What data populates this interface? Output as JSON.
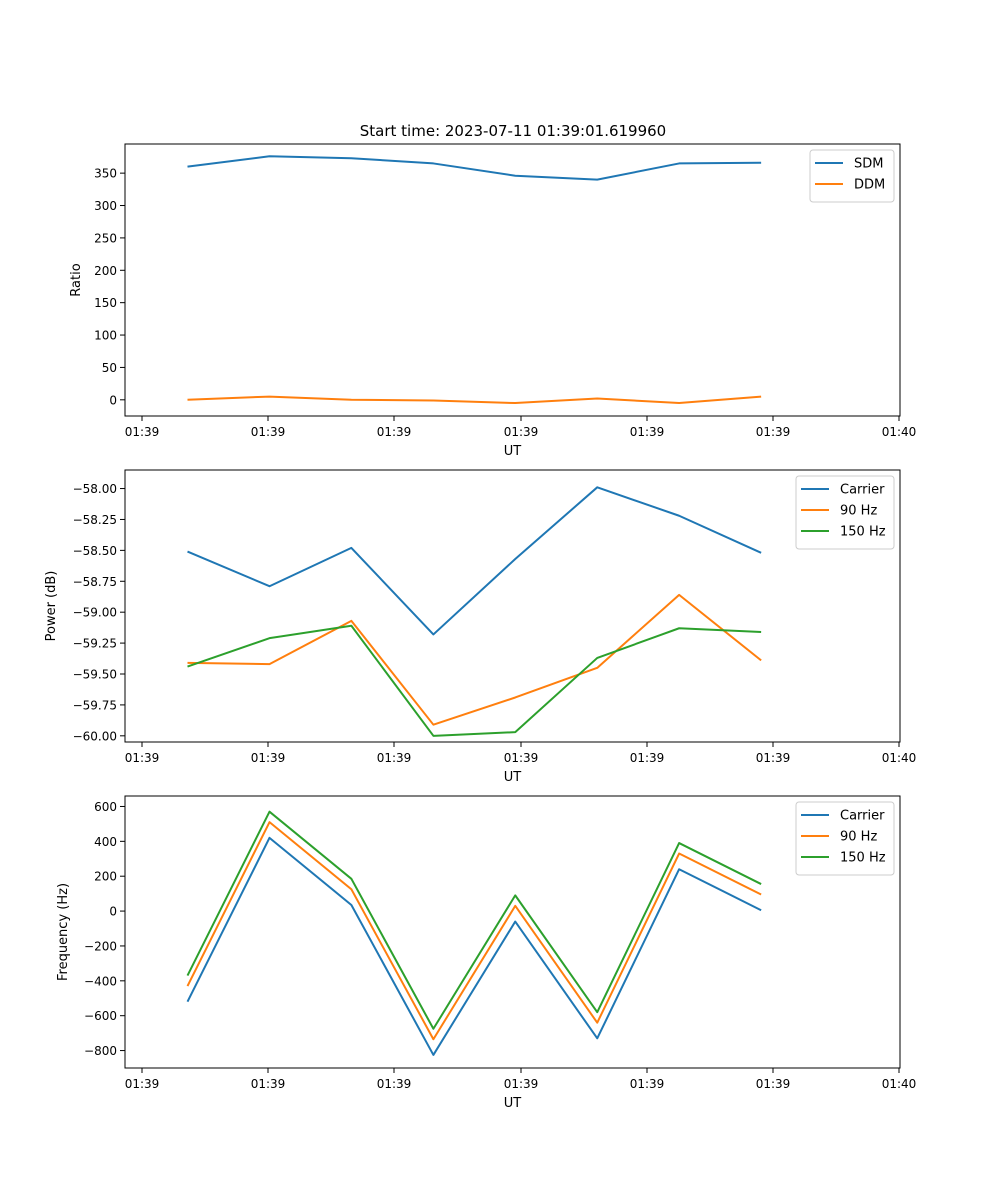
{
  "colors": {
    "blue": "#1f77b4",
    "orange": "#ff7f0e",
    "green": "#2ca02c"
  },
  "title": "Start time: 2023-07-11 01:39:01.619960",
  "chart_data": [
    {
      "type": "line",
      "title": "Start time: 2023-07-11 01:39:01.619960",
      "xlabel": "UT",
      "ylabel": "Ratio",
      "x_ticks": [
        "01:39",
        "01:39",
        "01:39",
        "01:39",
        "01:39",
        "01:39",
        "01:40"
      ],
      "x_range": [
        -0.5,
        5.7
      ],
      "x": [
        0.0,
        0.656,
        1.311,
        1.967,
        2.622,
        3.278,
        3.933,
        4.589
      ],
      "ylim": [
        -25,
        395
      ],
      "y_ticks": [
        0,
        50,
        100,
        150,
        200,
        250,
        300,
        350
      ],
      "series": [
        {
          "name": "SDM",
          "color": "#1f77b4",
          "values": [
            360,
            376,
            373,
            365,
            346,
            340,
            365,
            366
          ]
        },
        {
          "name": "DDM",
          "color": "#ff7f0e",
          "values": [
            0,
            5,
            0,
            -1,
            -5,
            2,
            -5,
            5
          ]
        }
      ],
      "legend": "top-right"
    },
    {
      "type": "line",
      "title": "",
      "xlabel": "UT",
      "ylabel": "Power (dB)",
      "x_ticks": [
        "01:39",
        "01:39",
        "01:39",
        "01:39",
        "01:39",
        "01:39",
        "01:40"
      ],
      "x_range": [
        -0.5,
        5.7
      ],
      "x": [
        0.0,
        0.656,
        1.311,
        1.967,
        2.622,
        3.278,
        3.933,
        4.589
      ],
      "ylim": [
        -60.05,
        -57.85
      ],
      "y_ticks": [
        -60.0,
        -59.75,
        -59.5,
        -59.25,
        -59.0,
        -58.75,
        -58.5,
        -58.25,
        -58.0
      ],
      "y_tick_labels": [
        "−60.00",
        "−59.75",
        "−59.50",
        "−59.25",
        "−59.00",
        "−58.75",
        "−58.50",
        "−58.25",
        "−58.00"
      ],
      "series": [
        {
          "name": "Carrier",
          "color": "#1f77b4",
          "values": [
            -58.51,
            -58.79,
            -58.48,
            -59.18,
            -58.57,
            -57.99,
            -58.22,
            -58.52
          ]
        },
        {
          "name": "90 Hz",
          "color": "#ff7f0e",
          "values": [
            -59.41,
            -59.42,
            -59.07,
            -59.91,
            -59.69,
            -59.45,
            -58.86,
            -59.39
          ]
        },
        {
          "name": "150 Hz",
          "color": "#2ca02c",
          "values": [
            -59.44,
            -59.21,
            -59.11,
            -60.0,
            -59.97,
            -59.37,
            -59.13,
            -59.16
          ]
        }
      ],
      "legend": "top-right"
    },
    {
      "type": "line",
      "title": "",
      "xlabel": "UT",
      "ylabel": "Frequency (Hz)",
      "x_ticks": [
        "01:39",
        "01:39",
        "01:39",
        "01:39",
        "01:39",
        "01:39",
        "01:40"
      ],
      "x_range": [
        -0.5,
        5.7
      ],
      "x": [
        0.0,
        0.656,
        1.311,
        1.967,
        2.622,
        3.278,
        3.933,
        4.589
      ],
      "ylim": [
        -900,
        660
      ],
      "y_ticks": [
        -800,
        -600,
        -400,
        -200,
        0,
        200,
        400,
        600
      ],
      "y_tick_labels": [
        "−800",
        "−600",
        "−400",
        "−200",
        "0",
        "200",
        "400",
        "600"
      ],
      "series": [
        {
          "name": "Carrier",
          "color": "#1f77b4",
          "values": [
            -520,
            420,
            35,
            -825,
            -60,
            -730,
            240,
            5
          ]
        },
        {
          "name": "90 Hz",
          "color": "#ff7f0e",
          "values": [
            -430,
            510,
            125,
            -735,
            30,
            -640,
            330,
            95
          ]
        },
        {
          "name": "150 Hz",
          "color": "#2ca02c",
          "values": [
            -370,
            570,
            185,
            -675,
            90,
            -580,
            390,
            155
          ]
        }
      ],
      "legend": "top-right"
    }
  ]
}
